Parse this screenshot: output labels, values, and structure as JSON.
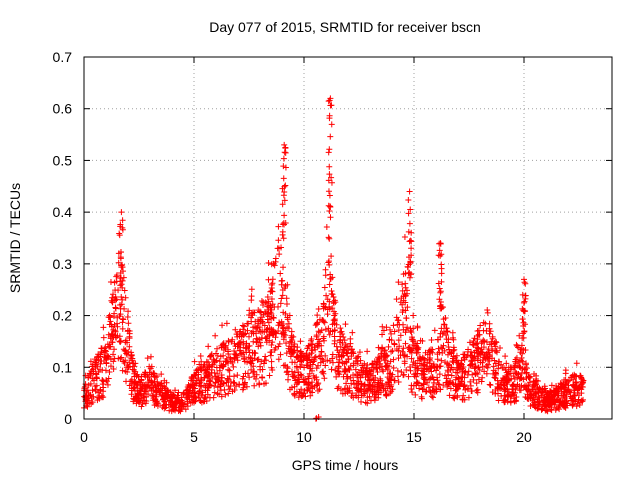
{
  "chart_data": {
    "type": "scatter",
    "title": "Day 077 of 2015, SRMTID for receiver bscn",
    "xlabel": "GPS time / hours",
    "ylabel": "SRMTID / TECUs",
    "xlim": [
      0,
      24
    ],
    "ylim": [
      0,
      0.7
    ],
    "xticks": [
      0,
      5,
      10,
      15,
      20
    ],
    "yticks": [
      0,
      0.1,
      0.2,
      0.3,
      0.4,
      0.5,
      0.6,
      0.7
    ],
    "xtick_labels": [
      "0",
      "5",
      "10",
      "15",
      "20"
    ],
    "ytick_labels": [
      "0",
      "0.1",
      "0.2",
      "0.3",
      "0.4",
      "0.5",
      "0.6",
      "0.7"
    ],
    "grid": true,
    "marker": "plus",
    "color": "#ff0000",
    "envelope_x": [
      0,
      0.5,
      1,
      1.3,
      1.6,
      1.8,
      2.0,
      2.2,
      2.5,
      3.0,
      3.5,
      4.0,
      4.5,
      5.0,
      5.5,
      6.0,
      6.5,
      7.0,
      7.5,
      8.0,
      8.5,
      8.8,
      9.0,
      9.3,
      9.6,
      10.0,
      10.5,
      10.9,
      11.1,
      11.3,
      11.6,
      12.0,
      12.5,
      13.0,
      13.5,
      14.0,
      14.3,
      14.6,
      14.8,
      15.0,
      15.5,
      16.0,
      16.3,
      16.7,
      17.0,
      17.5,
      18.0,
      18.3,
      18.7,
      19.0,
      19.5,
      19.9,
      20.3,
      20.7,
      21.0,
      21.5,
      22.0,
      22.5,
      22.7
    ],
    "envelope_y": [
      0.06,
      0.12,
      0.15,
      0.25,
      0.3,
      0.26,
      0.22,
      0.12,
      0.08,
      0.1,
      0.07,
      0.05,
      0.05,
      0.09,
      0.11,
      0.14,
      0.15,
      0.17,
      0.2,
      0.22,
      0.25,
      0.38,
      0.35,
      0.2,
      0.15,
      0.13,
      0.16,
      0.22,
      0.4,
      0.28,
      0.18,
      0.15,
      0.12,
      0.1,
      0.14,
      0.17,
      0.22,
      0.3,
      0.22,
      0.15,
      0.13,
      0.14,
      0.2,
      0.15,
      0.12,
      0.14,
      0.18,
      0.22,
      0.14,
      0.1,
      0.1,
      0.15,
      0.08,
      0.06,
      0.05,
      0.06,
      0.08,
      0.09,
      0.08
    ],
    "peaks": [
      {
        "x": 1.7,
        "y": 0.4
      },
      {
        "x": 9.1,
        "y": 0.53
      },
      {
        "x": 11.2,
        "y": 0.62
      },
      {
        "x": 14.8,
        "y": 0.44
      },
      {
        "x": 16.2,
        "y": 0.34
      },
      {
        "x": 20.0,
        "y": 0.27
      },
      {
        "x": 10.6,
        "y": 0.0
      }
    ]
  }
}
